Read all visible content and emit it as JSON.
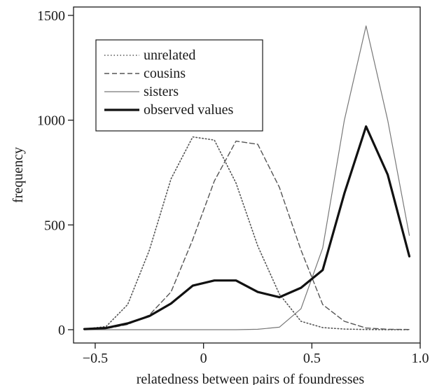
{
  "chart_data": {
    "type": "line",
    "title": "",
    "xlabel": "relatedness between pairs of foundresses",
    "ylabel": "frequency",
    "xlim": [
      -0.6,
      1.0
    ],
    "ylim": [
      0,
      1500
    ],
    "x_ticks": [
      "−0.5",
      "0",
      "0.5",
      "1.0"
    ],
    "x_tick_values": [
      -0.5,
      0,
      0.5,
      1.0
    ],
    "y_ticks": [
      "0",
      "500",
      "1000",
      "1500"
    ],
    "y_tick_values": [
      0,
      500,
      1000,
      1500
    ],
    "grid": false,
    "legend_position": "top-left",
    "series": [
      {
        "name": "unrelated",
        "style": "dotted",
        "color": "#555555",
        "x": [
          -0.55,
          -0.45,
          -0.35,
          -0.25,
          -0.15,
          -0.05,
          0.05,
          0.15,
          0.25,
          0.35,
          0.45,
          0.55,
          0.65,
          0.75,
          0.85,
          0.95
        ],
        "y": [
          3,
          15,
          120,
          380,
          720,
          920,
          905,
          700,
          400,
          170,
          40,
          10,
          3,
          1,
          0,
          0
        ]
      },
      {
        "name": "cousins",
        "style": "dashed",
        "color": "#555555",
        "x": [
          -0.55,
          -0.45,
          -0.35,
          -0.25,
          -0.15,
          -0.05,
          0.05,
          0.15,
          0.25,
          0.35,
          0.45,
          0.55,
          0.65,
          0.75,
          0.85,
          0.95
        ],
        "y": [
          2,
          5,
          25,
          70,
          180,
          430,
          710,
          900,
          885,
          680,
          380,
          120,
          40,
          8,
          2,
          1
        ]
      },
      {
        "name": "sisters",
        "style": "solid-thin",
        "color": "#777777",
        "x": [
          -0.55,
          -0.45,
          -0.35,
          -0.25,
          -0.15,
          -0.05,
          0.05,
          0.15,
          0.25,
          0.35,
          0.45,
          0.55,
          0.65,
          0.75,
          0.85,
          0.95
        ],
        "y": [
          0,
          0,
          0,
          0,
          0,
          0,
          0,
          0,
          2,
          12,
          100,
          390,
          1000,
          1450,
          1000,
          450
        ]
      },
      {
        "name": "observed values",
        "style": "solid-thick",
        "color": "#111111",
        "x": [
          -0.55,
          -0.45,
          -0.35,
          -0.25,
          -0.15,
          -0.05,
          0.05,
          0.15,
          0.25,
          0.35,
          0.45,
          0.55,
          0.65,
          0.75,
          0.85,
          0.95
        ],
        "y": [
          3,
          8,
          30,
          65,
          125,
          210,
          235,
          235,
          180,
          155,
          200,
          285,
          650,
          970,
          740,
          350
        ]
      }
    ]
  }
}
